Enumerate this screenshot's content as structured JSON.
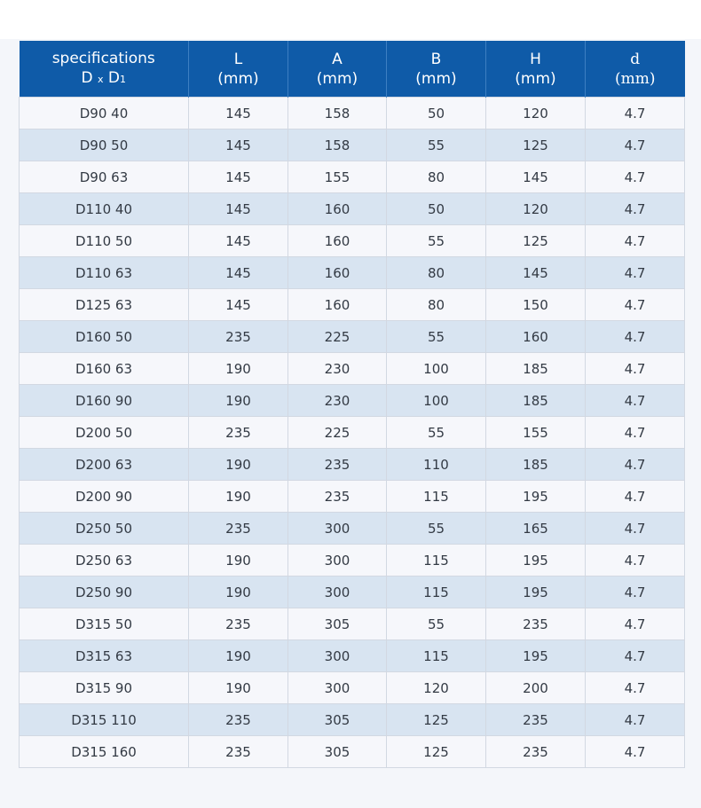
{
  "header": {
    "spec": {
      "line1": "specifications",
      "d": "D",
      "x": "x",
      "d1": "D",
      "d1_sub": "1"
    },
    "columns": [
      {
        "name": "L",
        "unit": "(mm)"
      },
      {
        "name": "A",
        "unit": "(mm)"
      },
      {
        "name": "B",
        "unit": "(mm)"
      },
      {
        "name": "H",
        "unit": "(mm)"
      },
      {
        "name": "d",
        "unit": "(mm)"
      }
    ]
  },
  "rows": [
    [
      "D90 40",
      "145",
      "158",
      "50",
      "120",
      "4.7"
    ],
    [
      "D90 50",
      "145",
      "158",
      "55",
      "125",
      "4.7"
    ],
    [
      "D90 63",
      "145",
      "155",
      "80",
      "145",
      "4.7"
    ],
    [
      "D110 40",
      "145",
      "160",
      "50",
      "120",
      "4.7"
    ],
    [
      "D110 50",
      "145",
      "160",
      "55",
      "125",
      "4.7"
    ],
    [
      "D110 63",
      "145",
      "160",
      "80",
      "145",
      "4.7"
    ],
    [
      "D125 63",
      "145",
      "160",
      "80",
      "150",
      "4.7"
    ],
    [
      "D160 50",
      "235",
      "225",
      "55",
      "160",
      "4.7"
    ],
    [
      "D160 63",
      "190",
      "230",
      "100",
      "185",
      "4.7"
    ],
    [
      "D160 90",
      "190",
      "230",
      "100",
      "185",
      "4.7"
    ],
    [
      "D200 50",
      "235",
      "225",
      "55",
      "155",
      "4.7"
    ],
    [
      "D200 63",
      "190",
      "235",
      "110",
      "185",
      "4.7"
    ],
    [
      "D200 90",
      "190",
      "235",
      "115",
      "195",
      "4.7"
    ],
    [
      "D250 50",
      "235",
      "300",
      "55",
      "165",
      "4.7"
    ],
    [
      "D250 63",
      "190",
      "300",
      "115",
      "195",
      "4.7"
    ],
    [
      "D250 90",
      "190",
      "300",
      "115",
      "195",
      "4.7"
    ],
    [
      "D315 50",
      "235",
      "305",
      "55",
      "235",
      "4.7"
    ],
    [
      "D315 63",
      "190",
      "300",
      "115",
      "195",
      "4.7"
    ],
    [
      "D315 90",
      "190",
      "300",
      "120",
      "200",
      "4.7"
    ],
    [
      "D315 110",
      "235",
      "305",
      "125",
      "235",
      "4.7"
    ],
    [
      "D315 160",
      "235",
      "305",
      "125",
      "235",
      "4.7"
    ]
  ]
}
